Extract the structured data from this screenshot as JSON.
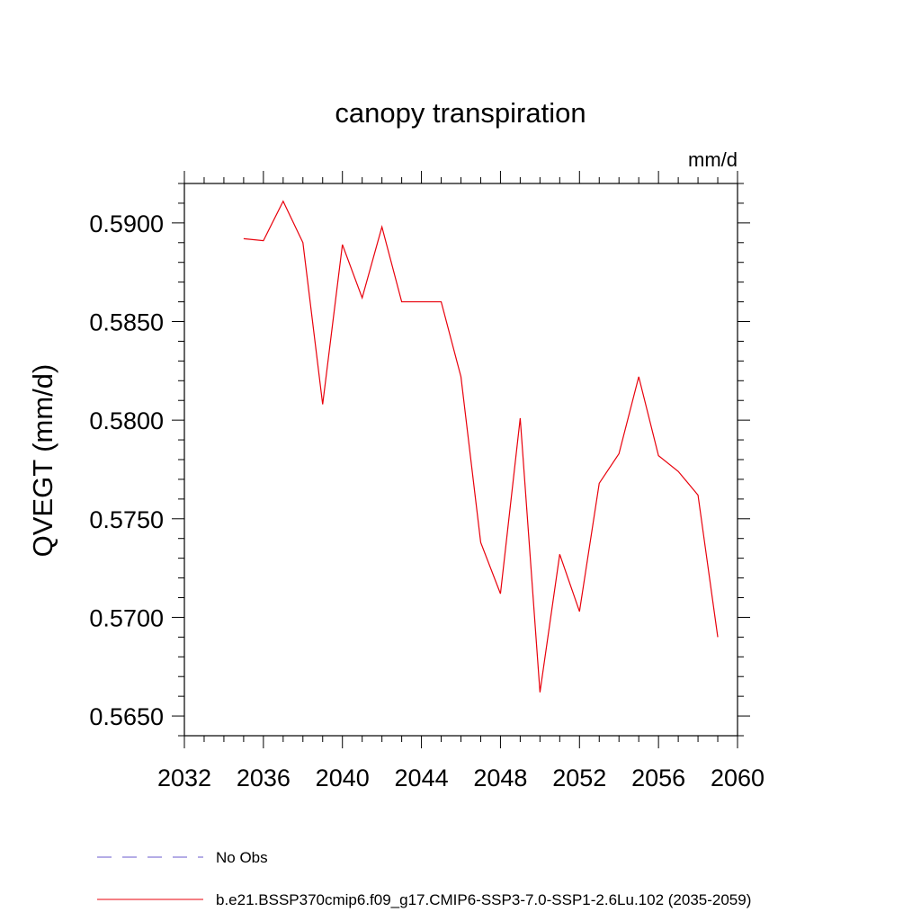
{
  "chart_data": {
    "type": "line",
    "title": "canopy transpiration",
    "units": "mm/d",
    "ylabel": "QVEGT  (mm/d)",
    "xlabel": "",
    "xlim": [
      2032,
      2060
    ],
    "ylim": [
      0.564,
      0.592
    ],
    "xticks": [
      2032,
      2036,
      2040,
      2044,
      2048,
      2052,
      2056,
      2060
    ],
    "yticks": [
      0.565,
      0.57,
      0.575,
      0.58,
      0.585,
      0.59
    ],
    "xtick_labels": [
      "2032",
      "2036",
      "2040",
      "2044",
      "2048",
      "2052",
      "2056",
      "2060"
    ],
    "ytick_labels": [
      "0.5650",
      "0.5700",
      "0.5750",
      "0.5800",
      "0.5850",
      "0.5900"
    ],
    "grid": false,
    "legend_position": "bottom",
    "series": [
      {
        "name": "b.e21.BSSP370cmip6.f09_g17.CMIP6-SSP3-7.0-SSP1-2.6Lu.102 (2035-2059)",
        "color": "#e8000b",
        "style": "solid",
        "x": [
          2035,
          2036,
          2037,
          2038,
          2039,
          2040,
          2041,
          2042,
          2043,
          2044,
          2045,
          2046,
          2047,
          2048,
          2049,
          2050,
          2051,
          2052,
          2053,
          2054,
          2055,
          2056,
          2057,
          2058,
          2059
        ],
        "y": [
          0.5892,
          0.5891,
          0.5911,
          0.589,
          0.5808,
          0.5889,
          0.5862,
          0.5898,
          0.586,
          0.586,
          0.586,
          0.5822,
          0.5738,
          0.5712,
          0.5801,
          0.5662,
          0.5732,
          0.5703,
          0.5768,
          0.5783,
          0.5822,
          0.5782,
          0.5774,
          0.5762,
          0.569
        ]
      }
    ],
    "legend": [
      {
        "label": "No Obs",
        "color": "#6a5acd",
        "style": "dashed"
      },
      {
        "label": "b.e21.BSSP370cmip6.f09_g17.CMIP6-SSP3-7.0-SSP1-2.6Lu.102 (2035-2059)",
        "color": "#e8000b",
        "style": "solid"
      }
    ]
  }
}
